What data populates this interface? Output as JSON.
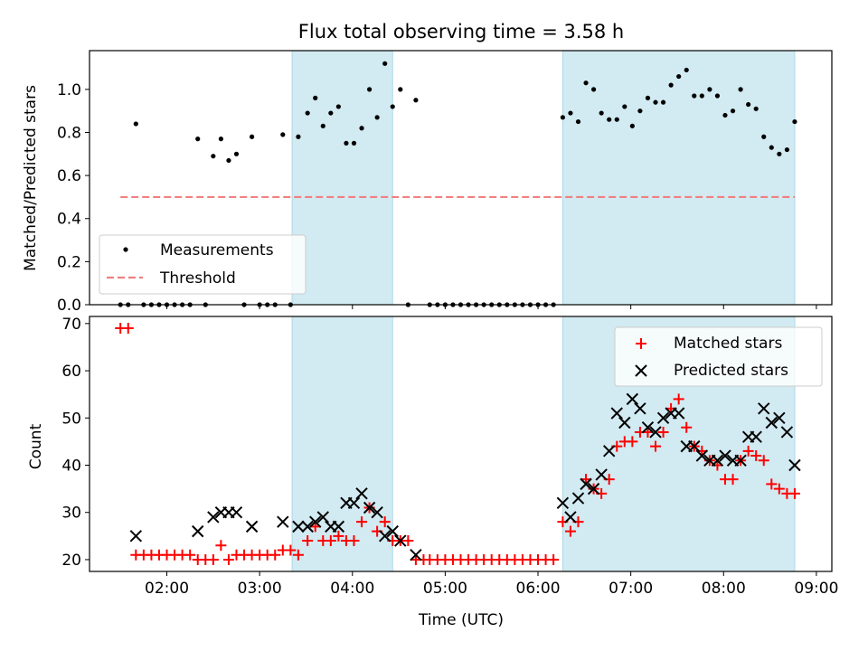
{
  "chart_data": [
    {
      "type": "scatter",
      "title": "Flux total observing time = 3.58 h",
      "ylabel": "Matched/Predicted stars",
      "xlabel": "",
      "ylim": [
        0,
        1.18
      ],
      "yticks": [
        "0.0",
        "0.2",
        "0.4",
        "0.6",
        "0.8",
        "1.0"
      ],
      "legend_position": "lower-left",
      "shaded_time_ranges": [
        [
          "03:21",
          "04:26"
        ],
        [
          "06:16",
          "08:46"
        ]
      ],
      "shade_color": "#add8e6",
      "series": [
        {
          "name": "Measurements",
          "marker": "dot",
          "color": "#000000",
          "points": [
            [
              "01:30",
              0
            ],
            [
              "01:35",
              0
            ],
            [
              "01:40",
              0.84
            ],
            [
              "01:45",
              0
            ],
            [
              "01:50",
              0
            ],
            [
              "01:55",
              0
            ],
            [
              "02:00",
              0
            ],
            [
              "02:05",
              0
            ],
            [
              "02:10",
              0
            ],
            [
              "02:15",
              0
            ],
            [
              "02:20",
              0.77
            ],
            [
              "02:25",
              0
            ],
            [
              "02:30",
              0.69
            ],
            [
              "02:35",
              0.77
            ],
            [
              "02:40",
              0.67
            ],
            [
              "02:45",
              0.7
            ],
            [
              "02:50",
              0
            ],
            [
              "02:55",
              0.78
            ],
            [
              "03:00",
              0
            ],
            [
              "03:05",
              0
            ],
            [
              "03:10",
              0
            ],
            [
              "03:15",
              0.79
            ],
            [
              "03:20",
              0
            ],
            [
              "03:25",
              0.78
            ],
            [
              "03:31",
              0.89
            ],
            [
              "03:36",
              0.96
            ],
            [
              "03:41",
              0.83
            ],
            [
              "03:46",
              0.89
            ],
            [
              "03:51",
              0.92
            ],
            [
              "03:56",
              0.75
            ],
            [
              "04:01",
              0.75
            ],
            [
              "04:06",
              0.82
            ],
            [
              "04:11",
              1.0
            ],
            [
              "04:16",
              0.87
            ],
            [
              "04:21",
              1.12
            ],
            [
              "04:26",
              0.92
            ],
            [
              "04:31",
              1.0
            ],
            [
              "04:36",
              0
            ],
            [
              "04:41",
              0.95
            ],
            [
              "04:50",
              0
            ],
            [
              "04:55",
              0
            ],
            [
              "05:00",
              0
            ],
            [
              "05:05",
              0
            ],
            [
              "05:10",
              0
            ],
            [
              "05:15",
              0
            ],
            [
              "05:20",
              0
            ],
            [
              "05:25",
              0
            ],
            [
              "05:30",
              0
            ],
            [
              "05:35",
              0
            ],
            [
              "05:40",
              0
            ],
            [
              "05:45",
              0
            ],
            [
              "05:50",
              0
            ],
            [
              "05:55",
              0
            ],
            [
              "06:00",
              0
            ],
            [
              "06:05",
              0
            ],
            [
              "06:10",
              0
            ],
            [
              "06:16",
              0.87
            ],
            [
              "06:21",
              0.89
            ],
            [
              "06:26",
              0.85
            ],
            [
              "06:31",
              1.03
            ],
            [
              "06:36",
              1.0
            ],
            [
              "06:41",
              0.89
            ],
            [
              "06:46",
              0.86
            ],
            [
              "06:51",
              0.86
            ],
            [
              "06:56",
              0.92
            ],
            [
              "07:01",
              0.83
            ],
            [
              "07:06",
              0.9
            ],
            [
              "07:11",
              0.96
            ],
            [
              "07:16",
              0.94
            ],
            [
              "07:21",
              0.94
            ],
            [
              "07:26",
              1.02
            ],
            [
              "07:31",
              1.06
            ],
            [
              "07:36",
              1.09
            ],
            [
              "07:41",
              0.97
            ],
            [
              "07:46",
              0.97
            ],
            [
              "07:51",
              1.0
            ],
            [
              "07:56",
              0.97
            ],
            [
              "08:01",
              0.88
            ],
            [
              "08:06",
              0.9
            ],
            [
              "08:11",
              1.0
            ],
            [
              "08:16",
              0.93
            ],
            [
              "08:21",
              0.91
            ],
            [
              "08:26",
              0.78
            ],
            [
              "08:31",
              0.73
            ],
            [
              "08:36",
              0.7
            ],
            [
              "08:41",
              0.72
            ],
            [
              "08:46",
              0.85
            ]
          ]
        },
        {
          "name": "Threshold",
          "marker": "dashed-line",
          "color": "#f08080",
          "points": [
            [
              "01:30",
              0.5
            ],
            [
              "08:46",
              0.5
            ]
          ]
        }
      ]
    },
    {
      "type": "scatter",
      "title": "",
      "xlabel": "Time (UTC)",
      "ylabel": "Count",
      "ylim": [
        17.5,
        71.5
      ],
      "yticks": [
        "20",
        "30",
        "40",
        "50",
        "60",
        "70"
      ],
      "xticks": [
        "02:00",
        "03:00",
        "04:00",
        "05:00",
        "06:00",
        "07:00",
        "08:00",
        "09:00"
      ],
      "xlim": [
        "01:10",
        "09:10"
      ],
      "legend_position": "upper-right",
      "shaded_time_ranges": [
        [
          "03:21",
          "04:26"
        ],
        [
          "06:16",
          "08:46"
        ]
      ],
      "shade_color": "#add8e6",
      "series": [
        {
          "name": "Matched stars",
          "marker": "plus",
          "color": "#ff0000",
          "points": [
            [
              "01:30",
              69
            ],
            [
              "01:35",
              69
            ],
            [
              "01:40",
              21
            ],
            [
              "01:45",
              21
            ],
            [
              "01:50",
              21
            ],
            [
              "01:55",
              21
            ],
            [
              "02:00",
              21
            ],
            [
              "02:05",
              21
            ],
            [
              "02:10",
              21
            ],
            [
              "02:15",
              21
            ],
            [
              "02:20",
              20
            ],
            [
              "02:25",
              20
            ],
            [
              "02:30",
              20
            ],
            [
              "02:35",
              23
            ],
            [
              "02:40",
              20
            ],
            [
              "02:45",
              21
            ],
            [
              "02:50",
              21
            ],
            [
              "02:55",
              21
            ],
            [
              "03:00",
              21
            ],
            [
              "03:05",
              21
            ],
            [
              "03:10",
              21
            ],
            [
              "03:15",
              22
            ],
            [
              "03:20",
              22
            ],
            [
              "03:25",
              21
            ],
            [
              "03:31",
              24
            ],
            [
              "03:36",
              27
            ],
            [
              "03:41",
              24
            ],
            [
              "03:46",
              24
            ],
            [
              "03:51",
              25
            ],
            [
              "03:56",
              24
            ],
            [
              "04:01",
              24
            ],
            [
              "04:06",
              28
            ],
            [
              "04:11",
              31
            ],
            [
              "04:16",
              26
            ],
            [
              "04:21",
              28
            ],
            [
              "04:26",
              24
            ],
            [
              "04:31",
              24
            ],
            [
              "04:36",
              24
            ],
            [
              "04:41",
              20
            ],
            [
              "04:46",
              20
            ],
            [
              "04:50",
              20
            ],
            [
              "04:55",
              20
            ],
            [
              "05:00",
              20
            ],
            [
              "05:05",
              20
            ],
            [
              "05:10",
              20
            ],
            [
              "05:15",
              20
            ],
            [
              "05:20",
              20
            ],
            [
              "05:25",
              20
            ],
            [
              "05:30",
              20
            ],
            [
              "05:35",
              20
            ],
            [
              "05:40",
              20
            ],
            [
              "05:45",
              20
            ],
            [
              "05:50",
              20
            ],
            [
              "05:55",
              20
            ],
            [
              "06:00",
              20
            ],
            [
              "06:05",
              20
            ],
            [
              "06:10",
              20
            ],
            [
              "06:16",
              28
            ],
            [
              "06:21",
              26
            ],
            [
              "06:26",
              28
            ],
            [
              "06:31",
              37
            ],
            [
              "06:36",
              35
            ],
            [
              "06:41",
              34
            ],
            [
              "06:46",
              37
            ],
            [
              "06:51",
              44
            ],
            [
              "06:56",
              45
            ],
            [
              "07:01",
              45
            ],
            [
              "07:06",
              47
            ],
            [
              "07:11",
              47
            ],
            [
              "07:16",
              44
            ],
            [
              "07:21",
              47
            ],
            [
              "07:26",
              52
            ],
            [
              "07:31",
              54
            ],
            [
              "07:36",
              48
            ],
            [
              "07:41",
              44
            ],
            [
              "07:46",
              43
            ],
            [
              "07:51",
              41
            ],
            [
              "07:56",
              40
            ],
            [
              "08:01",
              37
            ],
            [
              "08:06",
              37
            ],
            [
              "08:11",
              41
            ],
            [
              "08:16",
              43
            ],
            [
              "08:21",
              42
            ],
            [
              "08:26",
              41
            ],
            [
              "08:31",
              36
            ],
            [
              "08:36",
              35
            ],
            [
              "08:41",
              34
            ],
            [
              "08:46",
              34
            ]
          ]
        },
        {
          "name": "Predicted stars",
          "marker": "cross",
          "color": "#000000",
          "points": [
            [
              "01:40",
              25
            ],
            [
              "02:20",
              26
            ],
            [
              "02:30",
              29
            ],
            [
              "02:35",
              30
            ],
            [
              "02:40",
              30
            ],
            [
              "02:45",
              30
            ],
            [
              "02:55",
              27
            ],
            [
              "03:15",
              28
            ],
            [
              "03:25",
              27
            ],
            [
              "03:31",
              27
            ],
            [
              "03:36",
              28
            ],
            [
              "03:41",
              29
            ],
            [
              "03:46",
              27
            ],
            [
              "03:51",
              27
            ],
            [
              "03:56",
              32
            ],
            [
              "04:01",
              32
            ],
            [
              "04:06",
              34
            ],
            [
              "04:11",
              31
            ],
            [
              "04:16",
              30
            ],
            [
              "04:21",
              25
            ],
            [
              "04:26",
              26
            ],
            [
              "04:31",
              24
            ],
            [
              "04:41",
              21
            ],
            [
              "06:16",
              32
            ],
            [
              "06:21",
              29
            ],
            [
              "06:26",
              33
            ],
            [
              "06:31",
              36
            ],
            [
              "06:36",
              35
            ],
            [
              "06:41",
              38
            ],
            [
              "06:46",
              43
            ],
            [
              "06:51",
              51
            ],
            [
              "06:56",
              49
            ],
            [
              "07:01",
              54
            ],
            [
              "07:06",
              52
            ],
            [
              "07:11",
              48
            ],
            [
              "07:16",
              47
            ],
            [
              "07:21",
              50
            ],
            [
              "07:26",
              51
            ],
            [
              "07:31",
              51
            ],
            [
              "07:36",
              44
            ],
            [
              "07:41",
              44
            ],
            [
              "07:46",
              42
            ],
            [
              "07:51",
              41
            ],
            [
              "07:56",
              41
            ],
            [
              "08:01",
              42
            ],
            [
              "08:06",
              41
            ],
            [
              "08:11",
              41
            ],
            [
              "08:16",
              46
            ],
            [
              "08:21",
              46
            ],
            [
              "08:26",
              52
            ],
            [
              "08:31",
              49
            ],
            [
              "08:36",
              50
            ],
            [
              "08:41",
              47
            ],
            [
              "08:46",
              40
            ]
          ]
        }
      ]
    }
  ]
}
